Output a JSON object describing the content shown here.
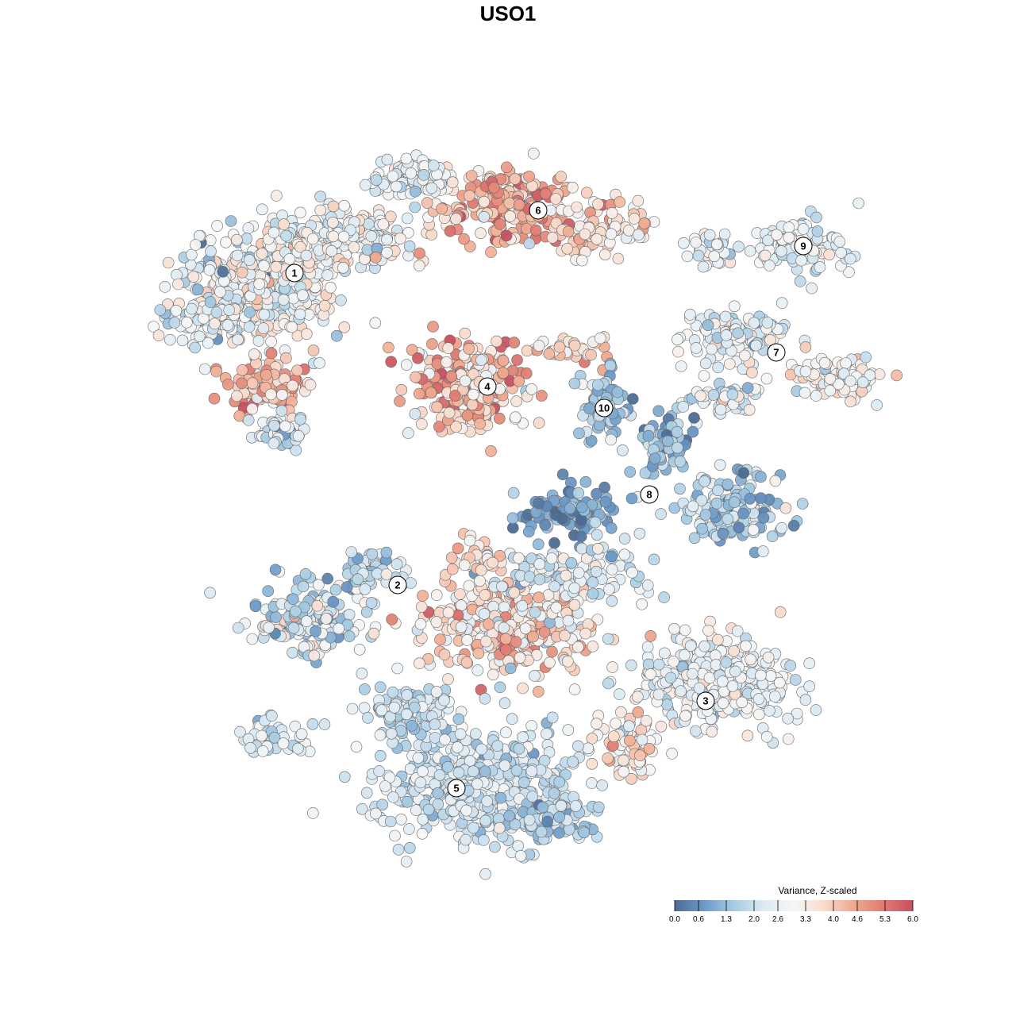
{
  "chart_data": {
    "type": "scatter",
    "title": "USO1",
    "description_axes": "tSNE embedding, no axes shown",
    "grid": false,
    "legend": {
      "title": "Variance, Z-scaled",
      "placement": "bottom-right",
      "ticks": [
        "0.0",
        "0.6",
        "1.3",
        "2.0",
        "2.6",
        "3.3",
        "4.0",
        "4.6",
        "5.3",
        "6.0"
      ],
      "range": [
        0,
        6
      ],
      "colors": [
        "#4d6b94",
        "#6c9ac8",
        "#a8cce3",
        "#dceaf3",
        "#f6f6f6",
        "#f9dccd",
        "#f0a98f",
        "#e07b72",
        "#c7505f"
      ]
    },
    "clusters": [
      {
        "label": "1"
      },
      {
        "label": "2"
      },
      {
        "label": "3"
      },
      {
        "label": "4"
      },
      {
        "label": "5"
      },
      {
        "label": "6"
      },
      {
        "label": "7"
      },
      {
        "label": "8"
      },
      {
        "label": "9"
      },
      {
        "label": "10"
      }
    ]
  }
}
